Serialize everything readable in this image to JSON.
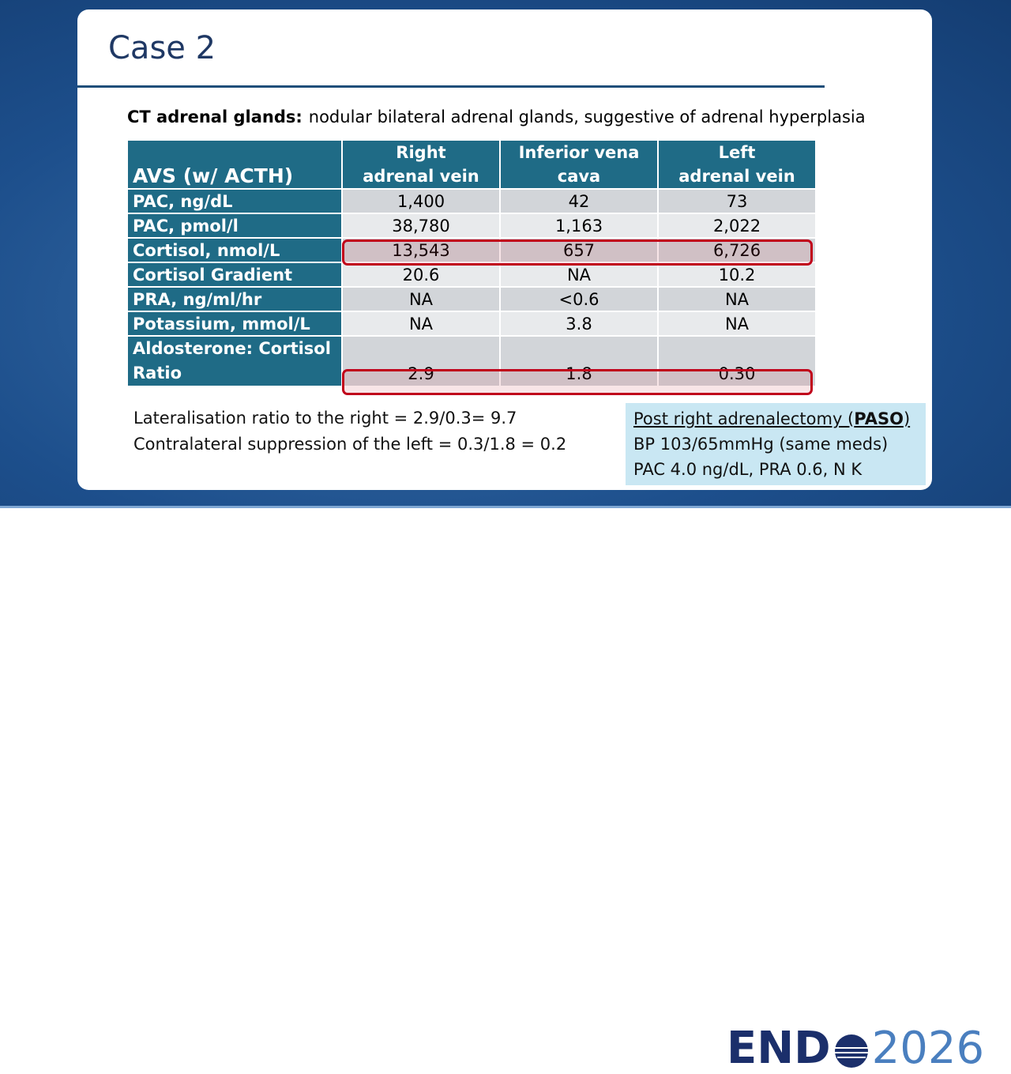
{
  "header": {
    "title": "Case 2"
  },
  "ct_note": {
    "label": "CT adrenal glands:",
    "text": "nodular bilateral adrenal glands, suggestive of adrenal hyperplasia"
  },
  "table": {
    "headers": [
      [
        "AVS (w/ ACTH)"
      ],
      [
        "Right",
        "adrenal vein"
      ],
      [
        "Inferior vena",
        "cava"
      ],
      [
        "Left",
        "adrenal vein"
      ]
    ],
    "rows": [
      [
        "PAC, ng/dL",
        "1,400",
        "42",
        "73"
      ],
      [
        "PAC, pmol/l",
        "38,780",
        "1,163",
        "2,022"
      ],
      [
        "Cortisol, nmol/L",
        "13,543",
        "657",
        "6,726"
      ],
      [
        "Cortisol Gradient",
        "20.6",
        "NA",
        "10.2"
      ],
      [
        "PRA, ng/ml/hr",
        "NA",
        "<0.6",
        "NA"
      ],
      [
        "Potassium, mmol/L",
        "NA",
        "3.8",
        "NA"
      ],
      [
        "Aldosterone: Cortisol Ratio",
        "2.9",
        "1.8",
        "0.30"
      ]
    ]
  },
  "notes": [
    "Lateralisation ratio to the right = 2.9/0.3= 9.7",
    "Contralateral suppression of the left = 0.3/1.8 = 0.2"
  ],
  "outcome": {
    "title_prefix": "Post right adrenalectomy (",
    "title_bold": "PASO",
    "title_suffix": ")",
    "lines": [
      "BP 103/65mmHg (same meds)",
      "PAC 4.0 ng/dL, PRA 0.6, N K"
    ]
  },
  "logo": {
    "left": "END",
    "right": "2026"
  }
}
